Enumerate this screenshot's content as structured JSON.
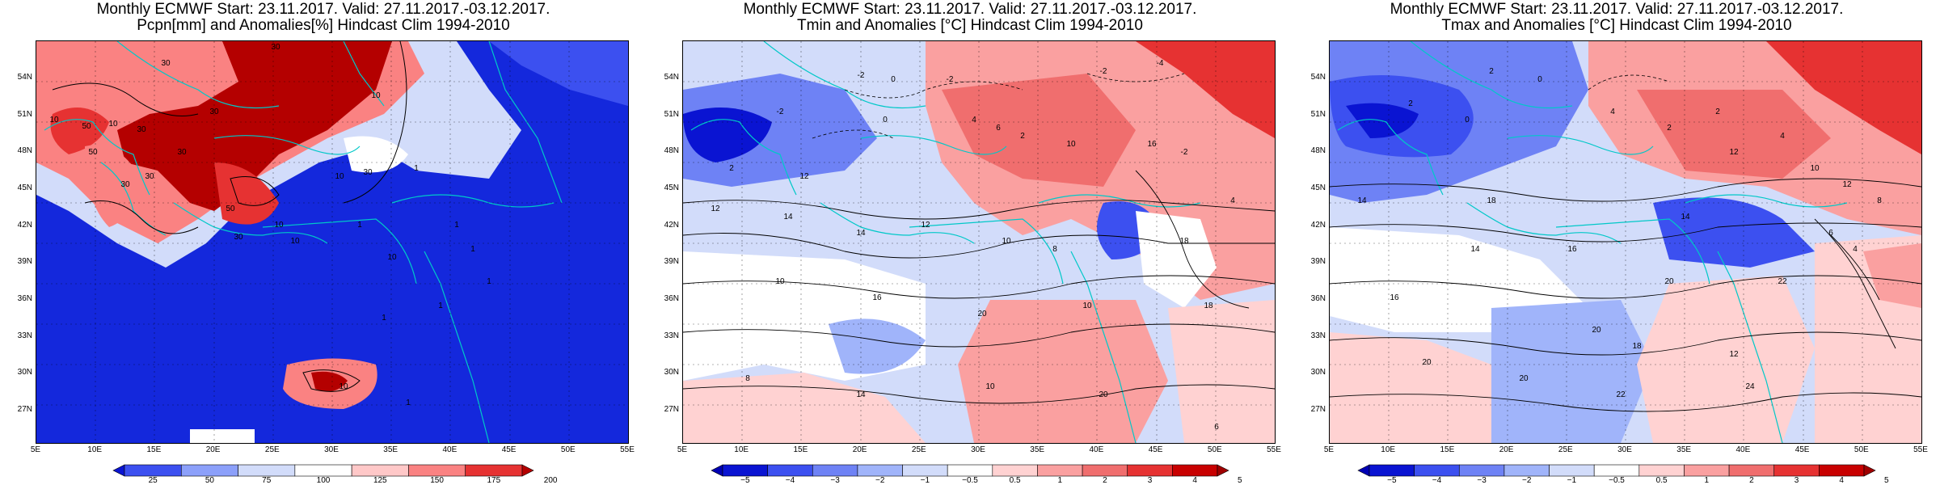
{
  "panels": [
    {
      "id": "precip",
      "title_line1": "Monthly ECMWF Start: 23.11.2017. Valid: 27.11.2017.-03.12.2017.",
      "title_line2": "Pcpn[mm] and Anomalies[%] Hindcast Clim 1994-2010",
      "colorbar_labels": [
        "25",
        "50",
        "75",
        "100",
        "125",
        "150",
        "175",
        "200"
      ],
      "colorbar_colors": [
        "#0a14d2",
        "#3c50f0",
        "#8ca0fa",
        "#d2dcfa",
        "#ffffff",
        "#ffc8c8",
        "#fa8282",
        "#e63232",
        "#b40000"
      ],
      "contour_labels": [
        "30",
        "30",
        "10",
        "10",
        "50",
        "30",
        "50",
        "30",
        "30",
        "30",
        "30",
        "50",
        "10",
        "30",
        "10",
        "10",
        "30",
        "10",
        "1",
        "1",
        "10",
        "1",
        "1",
        "1",
        "1",
        "1",
        "10",
        "1"
      ]
    },
    {
      "id": "tmin",
      "title_line1": "Monthly ECMWF Start: 23.11.2017. Valid: 27.11.2017.-03.12.2017.",
      "title_line2": "Tmin and Anomalies [°C] Hindcast Clim 1994-2010",
      "colorbar_labels": [
        "−5",
        "−4",
        "−3",
        "−2",
        "−1",
        "−0.5",
        "0.5",
        "1",
        "2",
        "3",
        "4",
        "5"
      ],
      "colorbar_colors": [
        "#0000b4",
        "#0a14d2",
        "#3c50f0",
        "#6e82f5",
        "#a0b4fa",
        "#d2dcfa",
        "#ffffff",
        "#ffd2d2",
        "#faa0a0",
        "#f06e6e",
        "#e63232",
        "#c80000",
        "#a00000"
      ],
      "contour_labels": [
        "-2",
        "0",
        "-2",
        "-4",
        "-2",
        "-2",
        "0",
        "4",
        "6",
        "2",
        "2",
        "12",
        "10",
        "16",
        "12",
        "14",
        "14",
        "12",
        "10",
        "8",
        "18",
        "10",
        "16",
        "20",
        "10",
        "18",
        "8",
        "14",
        "10",
        "20",
        "6",
        "4",
        "-2"
      ]
    },
    {
      "id": "tmax",
      "title_line1": "Monthly ECMWF Start: 23.11.2017. Valid: 27.11.2017.-03.12.2017.",
      "title_line2": "Tmax and Anomalies [°C] Hindcast Clim 1994-2010",
      "colorbar_labels": [
        "−5",
        "−4",
        "−3",
        "−2",
        "−1",
        "−0.5",
        "0.5",
        "1",
        "2",
        "3",
        "4",
        "5"
      ],
      "colorbar_colors": [
        "#0000b4",
        "#0a14d2",
        "#3c50f0",
        "#6e82f5",
        "#a0b4fa",
        "#d2dcfa",
        "#ffffff",
        "#ffd2d2",
        "#faa0a0",
        "#f06e6e",
        "#e63232",
        "#c80000",
        "#a00000"
      ],
      "contour_labels": [
        "2",
        "0",
        "2",
        "0",
        "4",
        "2",
        "12",
        "14",
        "16",
        "20",
        "22",
        "20",
        "18",
        "14",
        "16",
        "20",
        "20",
        "22",
        "24",
        "10",
        "12",
        "8",
        "6",
        "4",
        "2",
        "4",
        "14",
        "18",
        "12"
      ]
    }
  ],
  "lat_labels": [
    "54N",
    "51N",
    "48N",
    "45N",
    "42N",
    "39N",
    "36N",
    "33N",
    "30N",
    "27N"
  ],
  "lon_labels": [
    "5E",
    "10E",
    "15E",
    "20E",
    "25E",
    "30E",
    "35E",
    "40E",
    "45E",
    "50E",
    "55E"
  ]
}
